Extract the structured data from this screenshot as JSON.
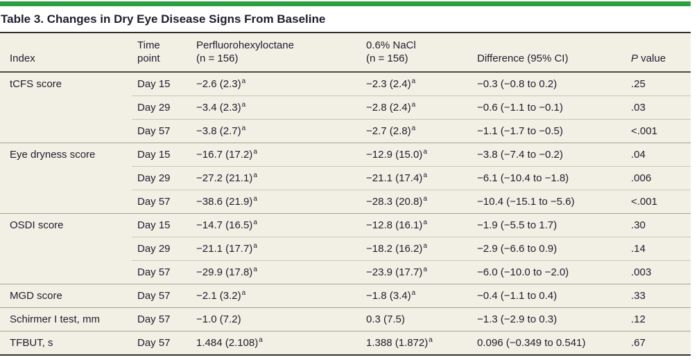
{
  "title": "Table 3. Changes in Dry Eye Disease Signs From Baseline",
  "colors": {
    "accent_bar_green": "#2f9e41",
    "table_background": "#f2efe4",
    "text": "#1d1d2e"
  },
  "header": {
    "index": "Index",
    "time": {
      "line1": "Time",
      "line2": "point"
    },
    "pfho": {
      "line1": "Perfluorohexyloctane",
      "line2": "(n = 156)"
    },
    "nacl": {
      "line1": "0.6% NaCl",
      "line2": "(n = 156)"
    },
    "difference": "Difference (95% CI)",
    "pvalue": {
      "italic": "P",
      "rest": " value"
    }
  },
  "footnote_marker": "a",
  "groups": [
    {
      "label": "tCFS score",
      "rows": [
        {
          "time": "Day 15",
          "pfho": "−2.6 (2.3)",
          "pfho_sup": "a",
          "nacl": "−2.3 (2.4)",
          "nacl_sup": "a",
          "diff": "−0.3 (−0.8 to 0.2)",
          "p": ".25"
        },
        {
          "time": "Day 29",
          "pfho": "−3.4 (2.3)",
          "pfho_sup": "a",
          "nacl": "−2.8 (2.4)",
          "nacl_sup": "a",
          "diff": "−0.6 (−1.1 to −0.1)",
          "p": ".03"
        },
        {
          "time": "Day 57",
          "pfho": "−3.8 (2.7)",
          "pfho_sup": "a",
          "nacl": "−2.7 (2.8)",
          "nacl_sup": "a",
          "diff": "−1.1 (−1.7 to −0.5)",
          "p": "<.001"
        }
      ]
    },
    {
      "label": "Eye dryness score",
      "rows": [
        {
          "time": "Day 15",
          "pfho": "−16.7 (17.2)",
          "pfho_sup": "a",
          "nacl": "−12.9 (15.0)",
          "nacl_sup": "a",
          "diff": "−3.8 (−7.4 to −0.2)",
          "p": ".04"
        },
        {
          "time": "Day 29",
          "pfho": "−27.2 (21.1)",
          "pfho_sup": "a",
          "nacl": "−21.1 (17.4)",
          "nacl_sup": "a",
          "diff": "−6.1 (−10.4 to −1.8)",
          "p": ".006"
        },
        {
          "time": "Day 57",
          "pfho": "−38.6 (21.9)",
          "pfho_sup": "a",
          "nacl": "−28.3 (20.8)",
          "nacl_sup": "a",
          "diff": "−10.4 (−15.1 to −5.6)",
          "p": "<.001"
        }
      ]
    },
    {
      "label": "OSDI score",
      "rows": [
        {
          "time": "Day 15",
          "pfho": "−14.7 (16.5)",
          "pfho_sup": "a",
          "nacl": "−12.8 (16.1)",
          "nacl_sup": "a",
          "diff": "−1.9 (−5.5 to 1.7)",
          "p": ".30"
        },
        {
          "time": "Day 29",
          "pfho": "−21.1 (17.7)",
          "pfho_sup": "a",
          "nacl": "−18.2 (16.2)",
          "nacl_sup": "a",
          "diff": "−2.9 (−6.6 to 0.9)",
          "p": ".14"
        },
        {
          "time": "Day 57",
          "pfho": "−29.9 (17.8)",
          "pfho_sup": "a",
          "nacl": "−23.9 (17.7)",
          "nacl_sup": "a",
          "diff": "−6.0 (−10.0 to −2.0)",
          "p": ".003"
        }
      ]
    },
    {
      "label": "MGD score",
      "rows": [
        {
          "time": "Day 57",
          "pfho": "−2.1 (3.2)",
          "pfho_sup": "a",
          "nacl": "−1.8 (3.4)",
          "nacl_sup": "a",
          "diff": "−0.4 (−1.1 to 0.4)",
          "p": ".33"
        }
      ]
    },
    {
      "label": "Schirmer I test, mm",
      "rows": [
        {
          "time": "Day 57",
          "pfho": "−1.0 (7.2)",
          "nacl": "0.3 (7.5)",
          "diff": "−1.3 (−2.9 to 0.3)",
          "p": ".12"
        }
      ]
    },
    {
      "label": "TFBUT, s",
      "rows": [
        {
          "time": "Day 57",
          "pfho": "1.484 (2.108)",
          "pfho_sup": "a",
          "nacl": "1.388 (1.872)",
          "nacl_sup": "a",
          "diff": "0.096 (−0.349 to 0.541)",
          "p": ".67"
        }
      ]
    }
  ]
}
